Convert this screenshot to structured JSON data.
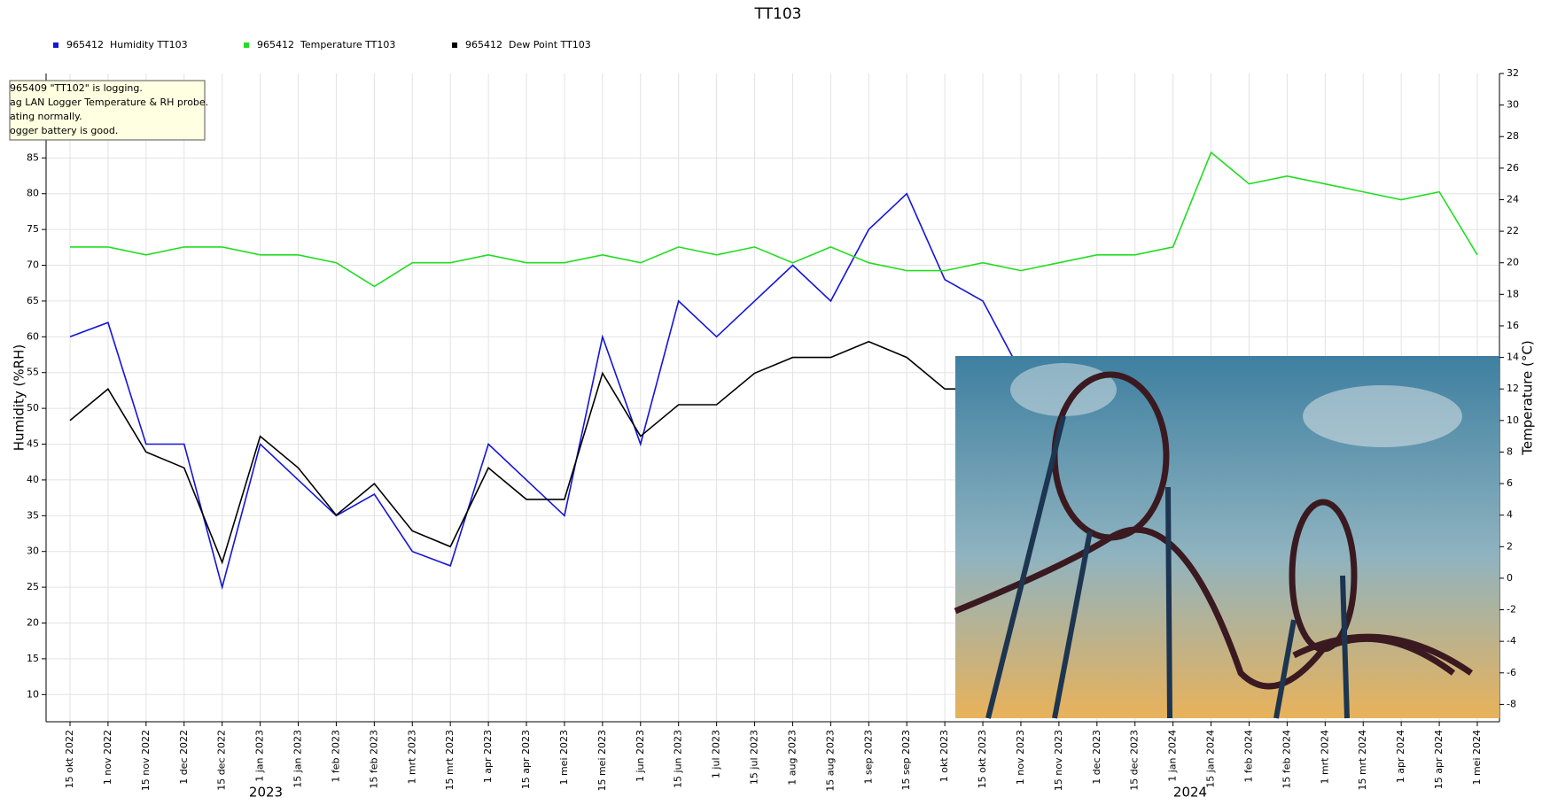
{
  "chart_data": {
    "type": "line",
    "title": "TT103",
    "y_label": "Humidity (%RH)",
    "y2_label": "Temperature (°C)",
    "categories": [
      "15 okt 2022",
      "1 nov 2022",
      "15 nov 2022",
      "1 dec 2022",
      "15 dec 2022",
      "1 jan 2023",
      "15 jan 2023",
      "1 feb 2023",
      "15 feb 2023",
      "1 mrt 2023",
      "15 mrt 2023",
      "1 apr 2023",
      "15 apr 2023",
      "1 mei 2023",
      "15 mei 2023",
      "1 jun 2023",
      "15 jun 2023",
      "1 jul 2023",
      "15 jul 2023",
      "1 aug 2023",
      "15 aug 2023",
      "1 sep 2023",
      "15 sep 2023",
      "1 okt 2023",
      "15 okt 2023",
      "1 nov 2023",
      "15 nov 2023",
      "1 dec 2023",
      "15 dec 2023",
      "1 jan 2024",
      "15 jan 2024",
      "1 feb 2024",
      "15 feb 2024",
      "1 mrt 2024",
      "15 mrt 2024",
      "1 apr 2024",
      "15 apr 2024",
      "1 mei 2024"
    ],
    "x_group_labels": [
      "2023",
      "2024"
    ],
    "series": [
      {
        "name": "965412  Humidity TT103",
        "color": "#1414dc",
        "values": [
          60,
          62,
          45,
          45,
          25,
          45,
          40,
          35,
          38,
          30,
          28,
          45,
          40,
          35,
          60,
          45,
          65,
          60,
          65,
          70,
          65,
          75,
          80,
          68,
          65,
          55,
          null,
          null,
          null,
          null,
          null,
          null,
          null,
          null,
          null,
          null,
          null,
          null
        ]
      },
      {
        "name": "965412  Temperature TT103",
        "color": "#22dd22",
        "axis": "y2",
        "values": [
          21,
          21,
          20.5,
          21,
          21,
          20.5,
          20.5,
          20,
          18.5,
          20,
          20,
          20.5,
          20,
          20,
          20.5,
          20,
          21,
          20.5,
          21,
          20,
          21,
          20,
          19.5,
          19.5,
          20,
          19.5,
          20,
          20.5,
          20.5,
          21,
          27,
          25,
          25.5,
          25,
          24.5,
          24,
          24.5,
          20.5
        ]
      },
      {
        "name": "965412  Dew Point TT103",
        "color": "#000000",
        "axis": "y2",
        "values": [
          10,
          12,
          8,
          7,
          1,
          9,
          7,
          4,
          6,
          3,
          2,
          7,
          5,
          5,
          13,
          9,
          11,
          11,
          13,
          14,
          14,
          15,
          14,
          12,
          12,
          null,
          null,
          null,
          null,
          null,
          null,
          null,
          null,
          null,
          null,
          null,
          null,
          null
        ]
      }
    ],
    "ylim": [
      6.2,
      96.8
    ],
    "yticks": [
      10,
      15,
      20,
      25,
      30,
      35,
      40,
      45,
      50,
      55,
      60,
      65,
      70,
      75,
      80,
      85
    ],
    "y2lim": [
      -9.1,
      32
    ],
    "y2ticks": [
      -8,
      -6,
      -4,
      -2,
      0,
      2,
      4,
      6,
      8,
      10,
      12,
      14,
      16,
      18,
      20,
      22,
      24,
      26,
      28,
      30,
      32
    ],
    "grid": true
  },
  "tooltip": {
    "lines": [
      "965409 \"TT102\" is logging.",
      "ag LAN Logger Temperature & RH probe.",
      "ating normally.",
      "ogger battery is good."
    ]
  }
}
